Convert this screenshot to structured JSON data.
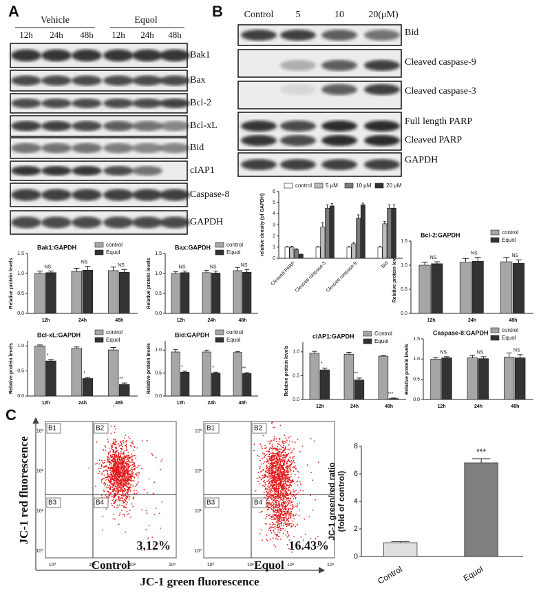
{
  "panel_a": {
    "label": "A",
    "groups": [
      "Vehicle",
      "Equol"
    ],
    "times": [
      "12h",
      "24h",
      "48h",
      "12h",
      "24h",
      "48h"
    ],
    "bands": [
      "Bak1",
      "Bax",
      "Bcl-2",
      "Bcl-xL",
      "Bid",
      "cIAP1",
      "Caspase-8",
      "GAPDH"
    ]
  },
  "panel_b": {
    "label": "B",
    "lanes": [
      "Control",
      "5",
      "10",
      "20(μM)"
    ],
    "bands": [
      "Bid",
      "Cleaved caspase-9",
      "Cleaved caspase-3",
      "Full length PARP",
      "Cleaved PARP",
      "GAPDH"
    ]
  },
  "panel_c": {
    "label": "C",
    "y_axis_label": "JC-1 red fluorescence",
    "x_axis_label": "JC-1 green fluorescence",
    "quadrants": [
      "B1",
      "B2",
      "B3",
      "B4"
    ],
    "ticks": [
      "10⁰",
      "10¹",
      "10²",
      "10³"
    ],
    "plots": [
      {
        "name": "Control",
        "percent": "3.12%"
      },
      {
        "name": "Equol",
        "percent": "16.43%"
      }
    ]
  },
  "chart_data": [
    {
      "type": "bar",
      "title": "Bak1:GAPDH",
      "ylabel": "Relative protein levels",
      "categories": [
        "12h",
        "24h",
        "48h"
      ],
      "series": [
        {
          "name": "control",
          "color": "#a6a6a6",
          "values": [
            1.0,
            1.05,
            1.07
          ],
          "errors": [
            0.06,
            0.08,
            0.09
          ]
        },
        {
          "name": "Equol",
          "color": "#333333",
          "values": [
            1.02,
            1.08,
            1.03
          ],
          "errors": [
            0.04,
            0.1,
            0.07
          ]
        }
      ],
      "annotations": [
        "NS",
        "NS",
        "NS"
      ],
      "ylim": [
        0,
        1.5
      ],
      "yticks": [
        {
          "value": 0,
          "label": "0.0"
        },
        0.5,
        {
          "value": 1,
          "label": "1.0"
        },
        1.5
      ]
    },
    {
      "type": "bar",
      "title": "Bax:GAPDH",
      "ylabel": "Relative protein levels",
      "categories": [
        "12h",
        "24h",
        "48h"
      ],
      "series": [
        {
          "name": "control",
          "color": "#a6a6a6",
          "values": [
            1.0,
            1.02,
            1.07
          ],
          "errors": [
            0.04,
            0.06,
            0.08
          ]
        },
        {
          "name": "Equol",
          "color": "#333333",
          "values": [
            1.02,
            1.01,
            1.03
          ],
          "errors": [
            0.04,
            0.05,
            0.07
          ]
        }
      ],
      "annotations": [
        "NS",
        "NS",
        "NS"
      ],
      "ylim": [
        0,
        1.5
      ],
      "yticks": [
        {
          "value": 0,
          "label": "0.0"
        },
        0.5,
        {
          "value": 1,
          "label": "1.0"
        },
        1.5
      ]
    },
    {
      "type": "bar",
      "title": "Bcl-2:GAPDH",
      "ylabel": "Relative protein levels",
      "categories": [
        "12h",
        "24h",
        "48h"
      ],
      "series": [
        {
          "name": "control",
          "color": "#a6a6a6",
          "values": [
            1.0,
            1.06,
            1.07
          ],
          "errors": [
            0.06,
            0.08,
            0.09
          ]
        },
        {
          "name": "Equol",
          "color": "#333333",
          "values": [
            1.03,
            1.08,
            1.04
          ],
          "errors": [
            0.04,
            0.08,
            0.07
          ]
        }
      ],
      "annotations": [
        "NS",
        "NS",
        "NS"
      ],
      "ylim": [
        0,
        1.5
      ],
      "yticks": [
        {
          "value": 0,
          "label": "0.0"
        },
        0.5,
        {
          "value": 1,
          "label": "1.0"
        },
        1.5
      ]
    },
    {
      "type": "bar",
      "title": "Bcl-xL:GAPDH",
      "ylabel": "Relative protein levels",
      "categories": [
        "12h",
        "24h",
        "48h"
      ],
      "series": [
        {
          "name": "control",
          "color": "#a6a6a6",
          "values": [
            1.0,
            0.95,
            0.92
          ],
          "errors": [
            0.02,
            0.03,
            0.05
          ]
        },
        {
          "name": "Equol",
          "color": "#333333",
          "values": [
            0.7,
            0.35,
            0.23
          ],
          "errors": [
            0.03,
            0.02,
            0.03
          ]
        }
      ],
      "annotations": [
        "*",
        "*",
        "**"
      ],
      "ylim": [
        0,
        1.1
      ],
      "yticks": [
        {
          "value": 0,
          "label": "0.0"
        },
        0.5,
        {
          "value": 1,
          "label": "1.0"
        }
      ]
    },
    {
      "type": "bar",
      "title": "Bid:GAPDH",
      "ylabel": "Relative protein levels",
      "categories": [
        "12h",
        "24h",
        "48h"
      ],
      "series": [
        {
          "name": "control",
          "color": "#a6a6a6",
          "values": [
            0.96,
            0.96,
            0.95
          ],
          "errors": [
            0.05,
            0.04,
            0.02
          ]
        },
        {
          "name": "Equol",
          "color": "#333333",
          "values": [
            0.52,
            0.5,
            0.49
          ],
          "errors": [
            0.02,
            0.02,
            0.02
          ]
        }
      ],
      "annotations": [
        "*",
        "*",
        "**"
      ],
      "ylim": [
        0,
        1.2
      ],
      "yticks": [
        {
          "value": 0,
          "label": "0.0"
        },
        0.5,
        {
          "value": 1,
          "label": "1.0"
        }
      ]
    },
    {
      "type": "bar",
      "title": "cIAP1:GAPDH",
      "ylabel": "Relative protein levels",
      "categories": [
        "12h",
        "24h",
        "48h"
      ],
      "series": [
        {
          "name": "Control",
          "color": "#a6a6a6",
          "values": [
            0.97,
            0.95,
            0.91
          ],
          "errors": [
            0.04,
            0.04,
            0.01
          ]
        },
        {
          "name": "Equol",
          "color": "#333333",
          "values": [
            0.62,
            0.41,
            0.02
          ],
          "errors": [
            0.04,
            0.04,
            0.01
          ]
        }
      ],
      "annotations": [
        "*",
        "**",
        "***"
      ],
      "ylim": [
        0,
        1.2
      ],
      "yticks": [
        {
          "value": 0,
          "label": "0.0"
        },
        0.5,
        {
          "value": 1,
          "label": "1.0"
        }
      ]
    },
    {
      "type": "bar",
      "title": "Caspase-8:GAPDH",
      "ylabel": "Relative protein levels",
      "categories": [
        "12h",
        "24h",
        "48h"
      ],
      "series": [
        {
          "name": "control",
          "color": "#a6a6a6",
          "values": [
            1.0,
            1.03,
            1.05
          ],
          "errors": [
            0.04,
            0.06,
            0.1
          ]
        },
        {
          "name": "Equol",
          "color": "#333333",
          "values": [
            1.03,
            1.01,
            1.03
          ],
          "errors": [
            0.03,
            0.05,
            0.08
          ]
        }
      ],
      "annotations": [
        "NS",
        "NS",
        "NS"
      ],
      "ylim": [
        0,
        1.5
      ],
      "yticks": [
        {
          "value": 0,
          "label": "0.0"
        },
        0.5,
        {
          "value": 1,
          "label": "1.0"
        },
        1.5
      ]
    },
    {
      "type": "bar",
      "ylabel": "relative density (of GAPDH)",
      "categories": [
        "Cleaved PARP",
        "Cleaved caspase-3",
        "Cleaved caspase-9",
        "Bid"
      ],
      "series": [
        {
          "name": "control",
          "color": "#ffffff",
          "values": [
            1.0,
            1.0,
            1.0,
            1.0
          ],
          "errors": [
            0.05,
            0.05,
            0.05,
            0.05
          ]
        },
        {
          "name": "5 μM",
          "color": "#bdbdbd",
          "values": [
            1.0,
            2.8,
            1.3,
            3.1
          ],
          "errors": [
            0.08,
            0.4,
            0.1,
            0.2
          ]
        },
        {
          "name": "10 μM",
          "color": "#7a7a7a",
          "values": [
            0.8,
            4.5,
            3.6,
            4.5
          ],
          "errors": [
            0.06,
            0.3,
            0.3,
            0.3
          ]
        },
        {
          "name": "20 μM",
          "color": "#333333",
          "values": [
            0.35,
            4.7,
            4.8,
            4.5
          ],
          "errors": [
            0.03,
            0.2,
            0.15,
            0.3
          ]
        }
      ],
      "ylim": [
        0,
        6
      ],
      "yticks": [
        0,
        1,
        2,
        3,
        4,
        5,
        6
      ]
    },
    {
      "type": "bar",
      "ylabel": [
        "JC-1 green/red ratio",
        "(fold of control)"
      ],
      "categories": [
        "Control",
        "Equol"
      ],
      "series": [
        {
          "colors": [
            "#e0e0e0",
            "#7f7f7f"
          ],
          "values": [
            1.0,
            6.8
          ],
          "errors": [
            0.08,
            0.3
          ]
        }
      ],
      "annotations": [
        null,
        "***"
      ],
      "ylim": [
        0,
        8
      ],
      "yticks": [
        0,
        2,
        4,
        6,
        8
      ]
    }
  ]
}
